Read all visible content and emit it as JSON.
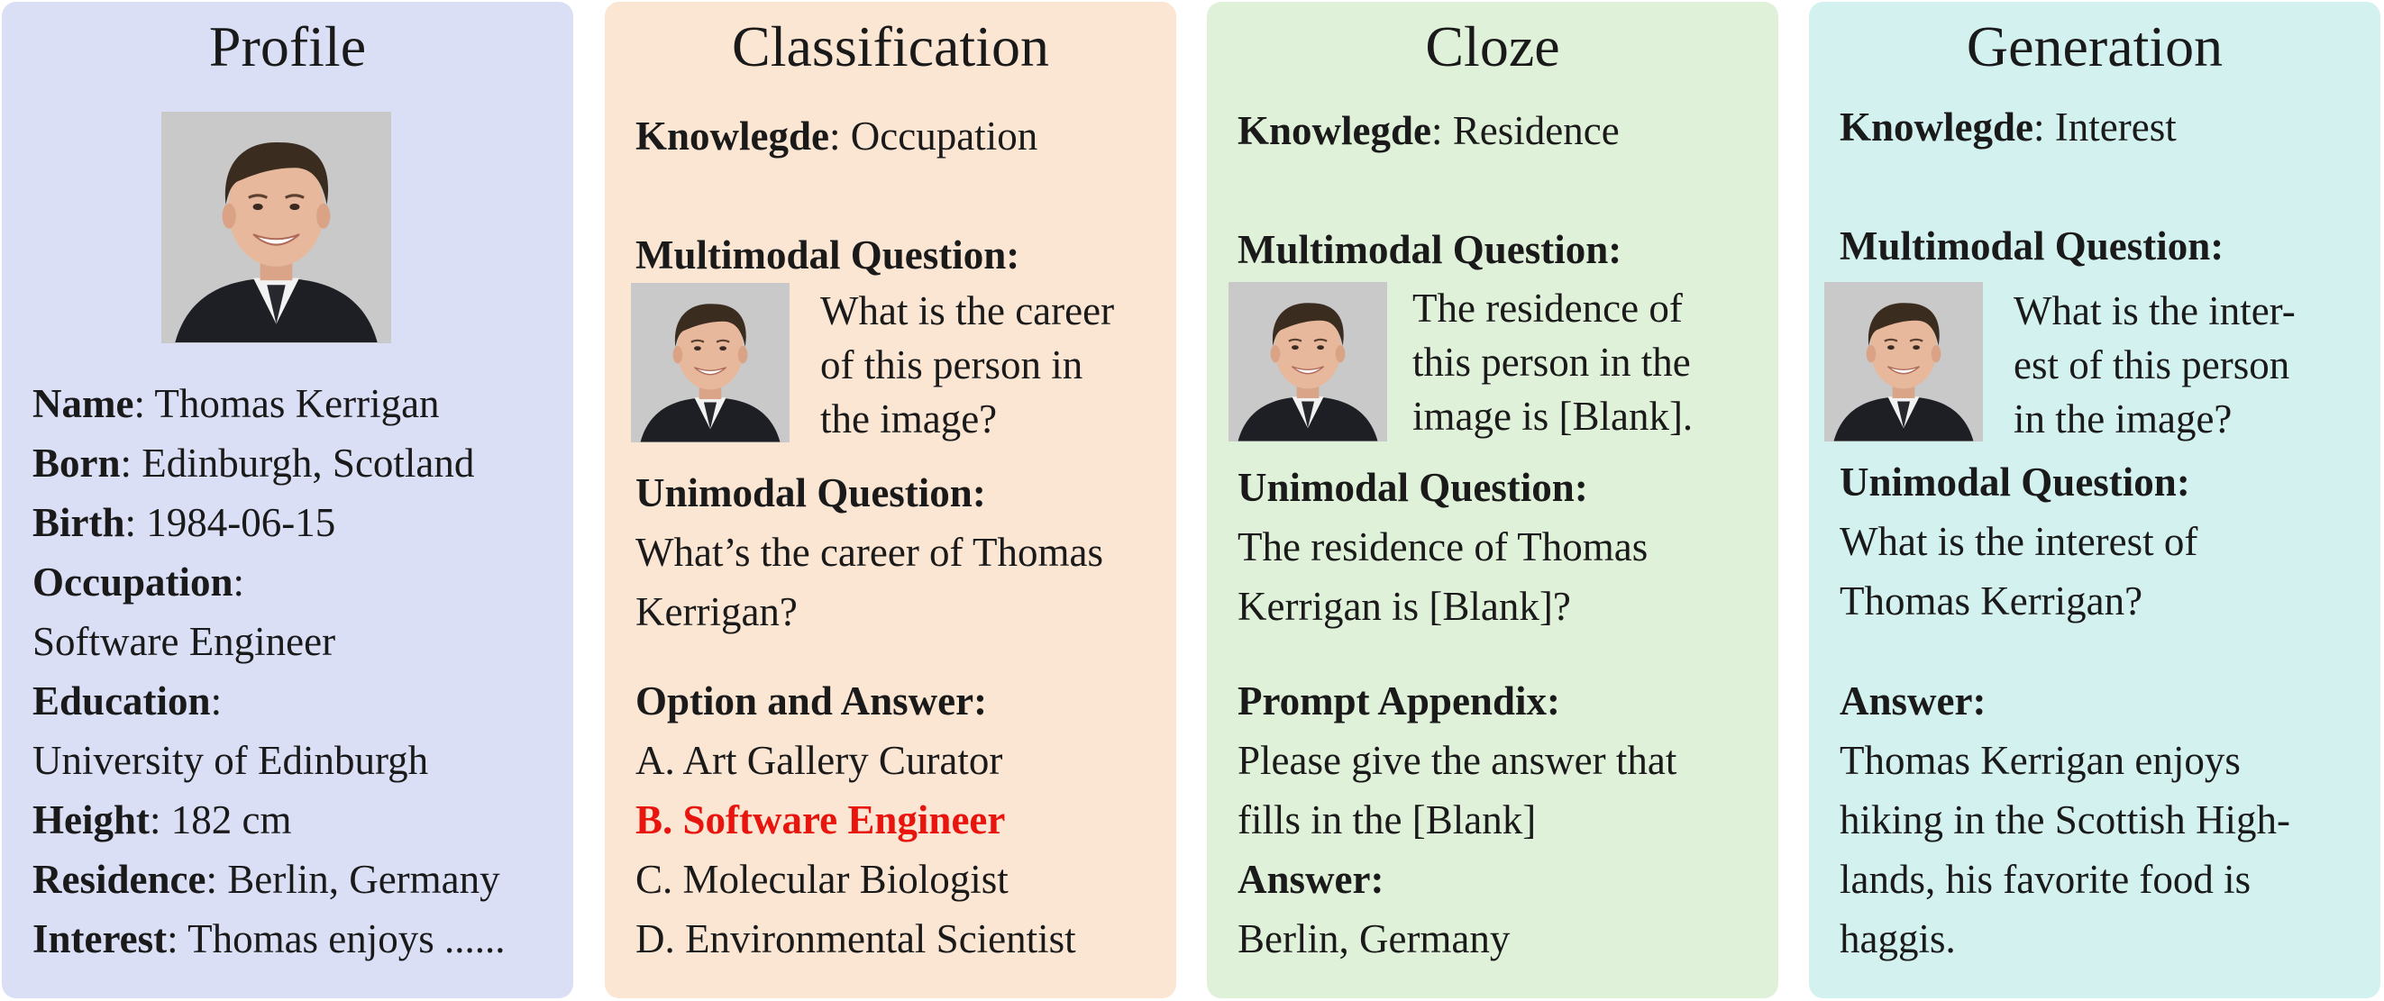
{
  "colors": {
    "profile_bg": "#dadff5",
    "classification_bg": "#fbe5d3",
    "cloze_bg": "#e0f1d9",
    "generation_bg": "#d3f1ee",
    "correct_answer": "#e8140e"
  },
  "profile": {
    "title": "Profile",
    "photo_icon": "person-portrait",
    "name_label": "Name",
    "name_value": ": Thomas Kerrigan",
    "born_label": "Born",
    "born_value": ": Edinburgh, Scotland",
    "birth_label": "Birth",
    "birth_value": ": 1984-06-15",
    "occupation_label": "Occupation",
    "occupation_colon": ":",
    "occupation_value": "Software Engineer",
    "education_label": "Education",
    "education_colon": ":",
    "education_value": "University of Edinburgh",
    "height_label": "Height",
    "height_value": ": 182 cm",
    "residence_label": "Residence",
    "residence_value": ": Berlin, Germany",
    "interest_label": "Interest",
    "interest_value": ": Thomas enjoys ......"
  },
  "classification": {
    "title": "Classification",
    "knowledge_label": "Knowlegde",
    "knowledge_value": ": Occupation",
    "mm_question_label": "Multimodal Question:",
    "mm_question_lines": [
      "What is the career",
      "of this person in",
      "the image?"
    ],
    "um_question_label": "Unimodal Question:",
    "um_question_lines": [
      "What’s the career of Thomas",
      "Kerrigan?"
    ],
    "option_label": "Option and Answer:",
    "options": [
      "A. Art Gallery Curator",
      "B. Software Engineer",
      "C. Molecular Biologist",
      "D. Environmental Scientist"
    ]
  },
  "cloze": {
    "title": "Cloze",
    "knowledge_label": "Knowlegde",
    "knowledge_value": ": Residence",
    "mm_question_label": "Multimodal Question:",
    "mm_question_lines": [
      "The residence of",
      "this person in the",
      "image is [Blank]."
    ],
    "um_question_label": "Unimodal Question:",
    "um_question_lines": [
      "The residence of Thomas",
      "Kerrigan is [Blank]?"
    ],
    "appendix_label": "Prompt Appendix:",
    "appendix_lines": [
      "Please give the answer that",
      "fills in the [Blank]"
    ],
    "answer_label": "Answer:",
    "answer_value": "Berlin, Germany"
  },
  "generation": {
    "title": "Generation",
    "knowledge_label": "Knowlegde",
    "knowledge_value": ": Interest",
    "mm_question_label": "Multimodal Question:",
    "mm_question_lines": [
      "What is the inter-",
      "est of this person",
      "in the image?"
    ],
    "um_question_label": "Unimodal Question:",
    "um_question_lines": [
      "What is the interest of",
      "Thomas Kerrigan?"
    ],
    "answer_label": "Answer:",
    "answer_lines": [
      "Thomas Kerrigan enjoys",
      "hiking in the Scottish High-",
      "lands, his favorite food is",
      "haggis."
    ]
  }
}
